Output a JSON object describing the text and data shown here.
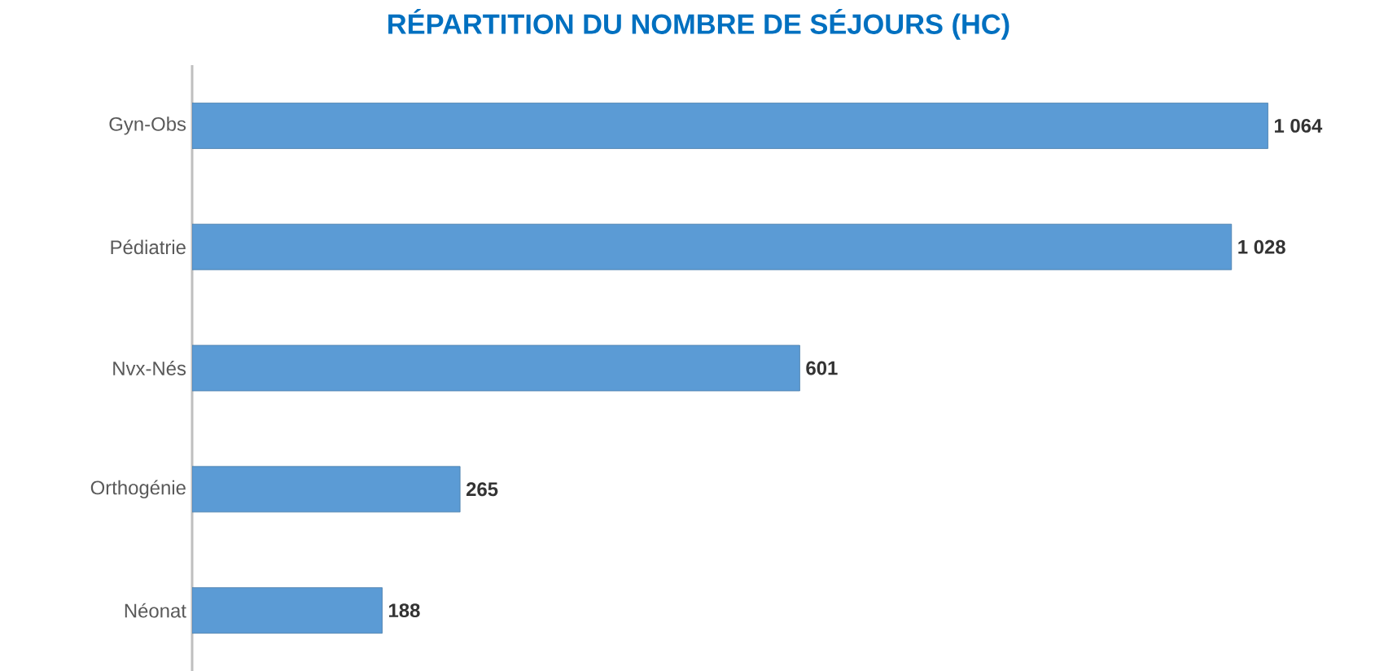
{
  "chart_data": {
    "type": "bar",
    "orientation": "horizontal",
    "title": "RÉPARTITION DU NOMBRE DE SÉJOURS (HC)",
    "categories": [
      "Gyn-Obs",
      "Pédiatrie",
      "Nvx-Nés",
      "Orthogénie",
      "Néonat"
    ],
    "values": [
      1064,
      1028,
      601,
      265,
      188
    ],
    "value_labels": [
      "1 064",
      "1 028",
      "601",
      "265",
      "188"
    ],
    "color": "#5b9bd5"
  }
}
